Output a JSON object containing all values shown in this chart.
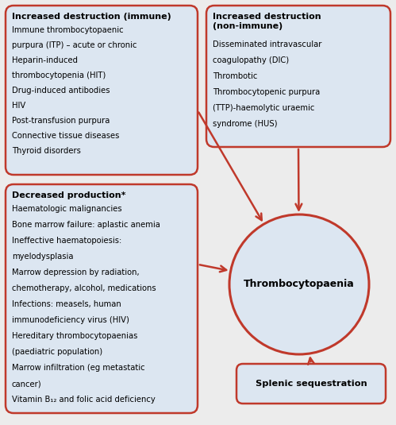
{
  "bg_color": "#ececec",
  "box_bg": "#dce6f1",
  "box_border": "#c0392b",
  "circle_bg": "#dce6f1",
  "circle_border": "#c0392b",
  "arrow_color": "#c0392b",
  "text_color": "#000000",
  "box1_title": "Increased destruction (immune)",
  "box1_lines": [
    "Immune thrombocytopaenic",
    "purpura (ITP) – acute or chronic",
    "Heparin-induced",
    "thrombocytopenia (HIT)",
    "Drug-induced antibodies",
    "HIV",
    "Post-transfusion purpura",
    "Connective tissue diseases",
    "Thyroid disorders"
  ],
  "box2_title": "Increased destruction\n(non-immune)",
  "box2_lines": [
    "Disseminated intravascular",
    "coagulopathy (DIC)",
    "Thrombotic",
    "Thrombocytopenic purpura",
    "(TTP)-haemolytic uraemic",
    "syndrome (HUS)"
  ],
  "box3_title": "Decreased production*",
  "box3_lines": [
    "Haematologic malignancies",
    "Bone marrow failure: aplastic anemia",
    "Ineffective haematopoiesis:",
    "myelodysplasia",
    "Marrow depression by radiation,",
    "chemotherapy, alcohol, medications",
    "Infections: measels, human",
    "immunodeficiency virus (HIV)",
    "Hereditary thrombocytopaenias",
    "(paediatric population)",
    "Marrow infiltration (eg metastatic",
    "cancer)",
    "Vitamin B₁₂ and folic acid deficiency"
  ],
  "box4_title": "Splenic sequestration",
  "circle_label": "Thrombocytopaenia"
}
